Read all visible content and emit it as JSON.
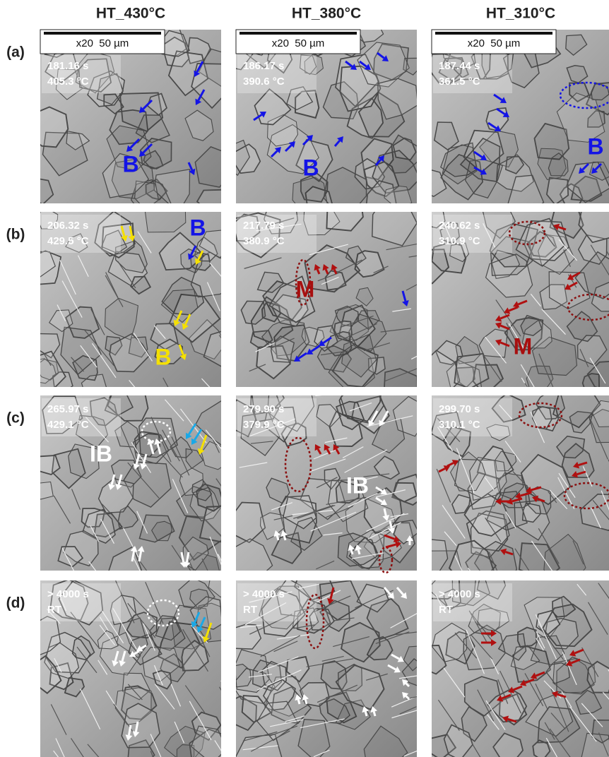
{
  "columns": [
    "HT_430°C",
    "HT_380°C",
    "HT_310°C"
  ],
  "rows": [
    {
      "label": "(a)",
      "panels": [
        {
          "scale": "x20  50 µm",
          "time": "181.16 s",
          "temp": "405.3 °C",
          "notes": [
            {
              "text": "B",
              "color": "#1414e6"
            }
          ]
        },
        {
          "scale": "x20  50 µm",
          "time": "186.17 s",
          "temp": "390.6 °C",
          "notes": [
            {
              "text": "B",
              "color": "#1414e6"
            }
          ]
        },
        {
          "scale": "x20  50 µm",
          "time": "187.44 s",
          "temp": "361.5 °C",
          "notes": [
            {
              "text": "B",
              "color": "#1414e6"
            }
          ]
        }
      ]
    },
    {
      "label": "(b)",
      "panels": [
        {
          "time": "206.32 s",
          "temp": "429.5 °C",
          "notes": [
            {
              "text": "B",
              "color": "#1414e6"
            },
            {
              "text": "B",
              "color": "#f5e000"
            }
          ]
        },
        {
          "time": "217.79 s",
          "temp": "380.9 °C",
          "notes": [
            {
              "text": "M",
              "color": "#a80f0f"
            }
          ]
        },
        {
          "time": "240.62 s",
          "temp": "310.9 °C",
          "notes": [
            {
              "text": "M",
              "color": "#a80f0f"
            }
          ]
        }
      ]
    },
    {
      "label": "(c)",
      "panels": [
        {
          "time": "265.97 s",
          "temp": "429.1 °C",
          "notes": [
            {
              "text": "IB",
              "color": "#ffffff"
            }
          ]
        },
        {
          "time": "279.90 s",
          "temp": "379.9 °C",
          "notes": [
            {
              "text": "IB",
              "color": "#ffffff"
            }
          ]
        },
        {
          "time": "299.70 s",
          "temp": "310.1 °C",
          "notes": []
        }
      ]
    },
    {
      "label": "(d)",
      "panels": [
        {
          "time": "> 4000 s",
          "temp": "RT",
          "notes": []
        },
        {
          "time": "> 4000 s",
          "temp": "RT",
          "notes": []
        },
        {
          "time": "> 4000 s",
          "temp": "RT",
          "notes": []
        }
      ]
    }
  ]
}
